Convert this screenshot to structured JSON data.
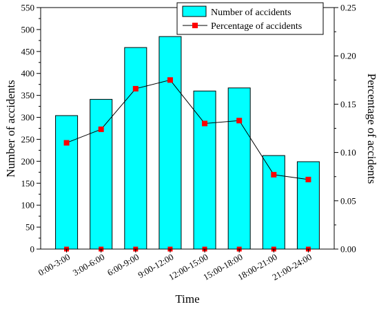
{
  "chart_data": {
    "type": "bar",
    "categories": [
      "0:00-3:00",
      "3:00-6:00",
      "6:00-9:00",
      "9:00-12:00",
      "12:00-15:00",
      "15:00-18:00",
      "18:00-21:00",
      "21:00-24:00"
    ],
    "series": [
      {
        "name": "Number of accidents",
        "type": "bar",
        "axis": "left",
        "color": "#00FFFF",
        "values": [
          304,
          341,
          459,
          484,
          360,
          367,
          213,
          199
        ]
      },
      {
        "name": "Percentage of accidents",
        "type": "line",
        "axis": "right",
        "color": "#FF0000",
        "line_color": "#000000",
        "values": [
          0.11,
          0.124,
          0.166,
          0.175,
          0.13,
          0.133,
          0.077,
          0.072
        ]
      }
    ],
    "baseline_markers": [
      0,
      0,
      0,
      0,
      0,
      0,
      0,
      0
    ],
    "xlabel": "Time",
    "ylabel": "Number of accidents",
    "y2label": "Percentage of accidents",
    "ylim": [
      0,
      550
    ],
    "y2lim": [
      0,
      0.25
    ],
    "yticks": [
      "0",
      "50",
      "100",
      "150",
      "200",
      "250",
      "300",
      "350",
      "400",
      "450",
      "500",
      "550"
    ],
    "y2ticks": [
      "0.00",
      "0.05",
      "0.10",
      "0.15",
      "0.20",
      "0.25"
    ],
    "legend": {
      "position": "top-right",
      "entries": [
        "Number of accidents",
        "Percentage of accidents"
      ]
    },
    "grid": false
  }
}
